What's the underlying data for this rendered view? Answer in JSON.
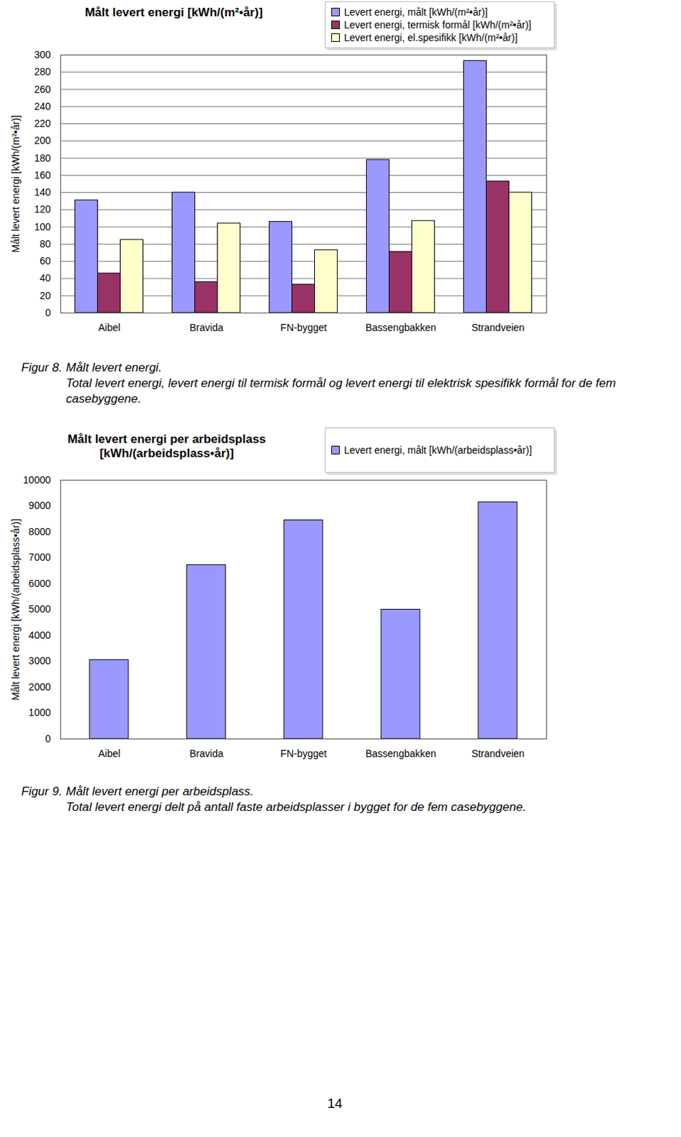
{
  "chart_data": [
    {
      "type": "bar",
      "title": "Målt levert energi [kWh/(m²•år)]",
      "ylabel": "Målt levert energi [kWh/(m²•år)]",
      "categories": [
        "Aibel",
        "Bravida",
        "FN-bygget",
        "Bassengbakken",
        "Strandveien"
      ],
      "series": [
        {
          "name": "Levert energi, målt [kWh/(m²•år)]",
          "color": "#9999ff",
          "values": [
            131,
            140,
            106,
            178,
            293
          ]
        },
        {
          "name": "Levert energi, termisk formål [kWh/(m²•år)]",
          "color": "#993366",
          "values": [
            46,
            36,
            33,
            71,
            153
          ]
        },
        {
          "name": "Levert energi, el.spesifikk [kWh/(m²•år)]",
          "color": "#ffffcc",
          "values": [
            85,
            104,
            73,
            107,
            140
          ]
        }
      ],
      "ylim": [
        0,
        300
      ],
      "yticks": [
        0,
        20,
        40,
        60,
        80,
        100,
        120,
        140,
        160,
        180,
        200,
        220,
        240,
        260,
        280,
        300
      ],
      "grid": true,
      "legend": "top-right"
    },
    {
      "type": "bar",
      "title": "Målt levert energi per arbeidsplass [kWh/(arbeidsplass•år)]",
      "ylabel": "Målt levert energi [kWh/(arbeidsplass•år)]",
      "categories": [
        "Aibel",
        "Bravida",
        "FN-bygget",
        "Bassengbakken",
        "Strandveien"
      ],
      "series": [
        {
          "name": "Levert energi, målt [kWh/(arbeidsplass•år)]",
          "color": "#9999ff",
          "values": [
            3050,
            6720,
            8450,
            5000,
            9150
          ]
        }
      ],
      "ylim": [
        0,
        10000
      ],
      "yticks": [
        0,
        1000,
        2000,
        3000,
        4000,
        5000,
        6000,
        7000,
        8000,
        9000,
        10000
      ],
      "grid": false,
      "legend": "top-right"
    }
  ],
  "captions": [
    {
      "label": "Figur 8.",
      "title": "Målt levert energi.",
      "text": "Total levert energi, levert energi til termisk formål og levert energi til elektrisk spesifikk formål for de fem casebyggene."
    },
    {
      "label": "Figur 9.",
      "title": "Målt levert energi per arbeidsplass.",
      "text": "Total levert energi delt på antall faste arbeidsplasser i bygget for de fem casebyggene."
    }
  ],
  "page_number": "14"
}
